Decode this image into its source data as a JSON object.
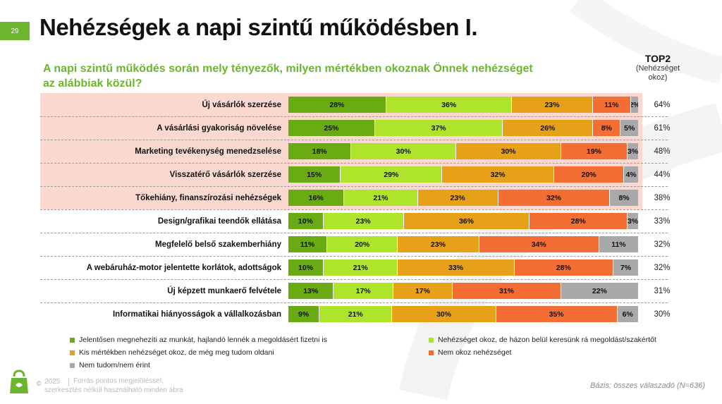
{
  "page_number": "29",
  "title": "Nehézségek a napi szintű működésben I.",
  "question": "A napi szintű működés során mely tényezők, milyen mértékben okoznak Önnek nehézséget az alábbiak közül?",
  "top2_header": {
    "title": "TOP2",
    "subtitle_line1": "(Nehézséget",
    "subtitle_line2": "okoz)"
  },
  "chart_data": {
    "type": "bar",
    "orientation": "horizontal",
    "stacked": true,
    "unit": "%",
    "categories": [
      "Új vásárlók szerzése",
      "A vásárlási gyakoriság növelése",
      "Marketing tevékenység menedzselése",
      "Visszatérő vásárlók szerzése",
      "Tőkehiány, finanszírozási nehézségek",
      "Design/grafikai teendők ellátása",
      "Megfelelő belső szakemberhiány",
      "A webáruház-motor jelentette korlátok, adottságok",
      "Új képzett munkaerő felvétele",
      "Informatikai hiányosságok a vállalkozásban"
    ],
    "highlighted_categories": 5,
    "series": [
      {
        "name": "Jelentősen megnehezíti az munkát, hajlandó lennék a megoldásért fizetni is",
        "color": "#6aaa12",
        "values": [
          28,
          25,
          18,
          15,
          16,
          10,
          11,
          10,
          13,
          9
        ]
      },
      {
        "name": "Nehézséget okoz, de házon belül keresünk rá megoldást/szakértőt",
        "color": "#aee52c",
        "values": [
          36,
          37,
          30,
          29,
          21,
          23,
          20,
          21,
          17,
          21
        ]
      },
      {
        "name": "Kis mértékben nehézséget okoz, de még meg tudom oldani",
        "color": "#e6a118",
        "values": [
          23,
          26,
          30,
          32,
          23,
          36,
          23,
          33,
          17,
          30
        ]
      },
      {
        "name": "Nem okoz nehézséget",
        "color": "#f46e33",
        "values": [
          11,
          8,
          19,
          20,
          32,
          28,
          34,
          28,
          31,
          35
        ]
      },
      {
        "name": "Nem tudom/nem érint",
        "color": "#a9a9a9",
        "values": [
          2,
          5,
          3,
          4,
          8,
          3,
          11,
          7,
          22,
          6
        ]
      }
    ],
    "top2": [
      "64%",
      "61%",
      "48%",
      "44%",
      "38%",
      "33%",
      "32%",
      "32%",
      "31%",
      "30%"
    ],
    "xlim": [
      0,
      100
    ]
  },
  "footer": {
    "copyright_symbol": "©",
    "year": "2025",
    "source_line1": "Forrás pontos megjelöléssel,",
    "source_line2": "szerkesztés nélkül használható minden ábra",
    "basis": "Bázis: összes válaszadó (N=636)"
  }
}
